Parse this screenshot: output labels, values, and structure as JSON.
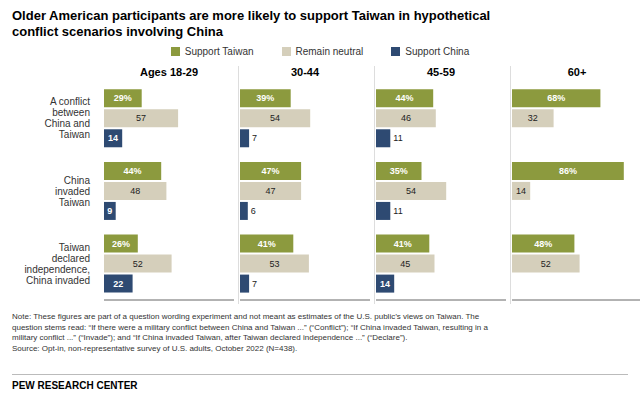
{
  "title": "Older American participants are more likely to support Taiwan in hypothetical\nconflict scenarios involving China",
  "legend": "top",
  "annotations": [
    "Note: These figures are part of a question wording experiment and not meant as estimates of the U.S. public’s views on Taiwan. The",
    "question stems read: “If there were a military conflict between China and Taiwan ...” (“Conflict”); “If China invaded Taiwan, resulting in a",
    "military conflict ...” (“Invade”); and “If China invaded Taiwan, after Taiwan declared independence ...” (“Declare”).",
    "Source: Opt-in, non-representative survey of U.S. adults, October 2022 (N=438).",
    "PEW RESEARCH CENTER"
  ],
  "chart_data": [
    {
      "type": "bar",
      "title": "Ages 18-29",
      "orientation": "horizontal",
      "categories": [
        "A conflict\nbetween\nChina and\nTaiwan",
        "China\ninvaded\nTaiwan",
        "Taiwan\ndeclared\nindependence,\nChina invaded"
      ],
      "series": [
        {
          "name": "Support Taiwan",
          "color": "#8c9a3e",
          "values": [
            29,
            44,
            26
          ],
          "value_labels": [
            "29%",
            "44%",
            "26%"
          ]
        },
        {
          "name": "Remain neutral",
          "color": "#d5cfbb",
          "values": [
            57,
            48,
            52
          ]
        },
        {
          "name": "Support China",
          "color": "#2e4a72",
          "values": [
            14,
            9,
            22
          ]
        }
      ],
      "xlim": [
        0,
        100
      ],
      "data_labels": true,
      "tick_labels": "y"
    },
    {
      "type": "bar",
      "title": "30-44",
      "orientation": "horizontal",
      "categories": [
        "A conflict\nbetween\nChina and\nTaiwan",
        "China\ninvaded\nTaiwan",
        "Taiwan\ndeclared\nindependence,\nChina invaded"
      ],
      "series": [
        {
          "name": "Support Taiwan",
          "color": "#8c9a3e",
          "values": [
            39,
            47,
            41
          ],
          "value_labels": [
            "39%",
            "47%",
            "41%"
          ]
        },
        {
          "name": "Remain neutral",
          "color": "#d5cfbb",
          "values": [
            54,
            47,
            53
          ]
        },
        {
          "name": "Support China",
          "color": "#2e4a72",
          "values": [
            7,
            6,
            7
          ]
        }
      ],
      "xlim": [
        0,
        100
      ],
      "data_labels": true,
      "tick_labels": false
    },
    {
      "type": "bar",
      "title": "45-59",
      "orientation": "horizontal",
      "categories": [
        "A conflict\nbetween\nChina and\nTaiwan",
        "China\ninvaded\nTaiwan",
        "Taiwan\ndeclared\nindependence,\nChina invaded"
      ],
      "series": [
        {
          "name": "Support Taiwan",
          "color": "#8c9a3e",
          "values": [
            44,
            35,
            41
          ],
          "value_labels": [
            "44%",
            "35%",
            "41%"
          ]
        },
        {
          "name": "Remain neutral",
          "color": "#d5cfbb",
          "values": [
            46,
            54,
            45
          ]
        },
        {
          "name": "Support China",
          "color": "#2e4a72",
          "values": [
            11,
            11,
            14
          ]
        }
      ],
      "xlim": [
        0,
        100
      ],
      "data_labels": true,
      "tick_labels": false
    },
    {
      "type": "bar",
      "title": "60+",
      "orientation": "horizontal",
      "categories": [
        "A conflict\nbetween\nChina and\nTaiwan",
        "China\ninvaded\nTaiwan",
        "Taiwan\ndeclared\nindependence,\nChina invaded"
      ],
      "series": [
        {
          "name": "Support Taiwan",
          "color": "#8c9a3e",
          "values": [
            68,
            86,
            48
          ],
          "value_labels": [
            "68%",
            "86%",
            "48%"
          ]
        },
        {
          "name": "Remain neutral",
          "color": "#d5cfbb",
          "values": [
            32,
            14,
            52
          ]
        },
        {
          "name": "Support China",
          "color": "#2e4a72",
          "values": [
            0,
            0,
            0
          ]
        }
      ],
      "xlim": [
        0,
        100
      ],
      "data_labels": true,
      "tick_labels": false
    }
  ]
}
